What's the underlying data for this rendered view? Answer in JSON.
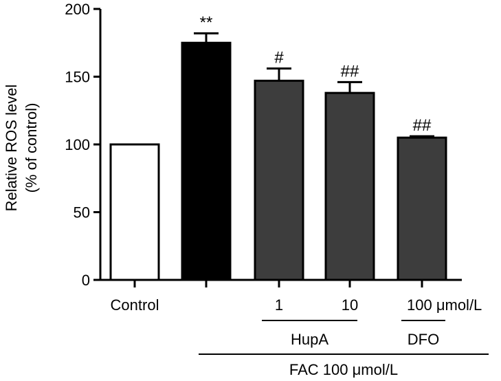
{
  "chart_data": {
    "type": "bar",
    "ylabel_lines": [
      "Relative ROS level",
      "(% of control)"
    ],
    "ylim": [
      0,
      200
    ],
    "yticks": [
      0,
      50,
      100,
      150,
      200
    ],
    "bars": [
      {
        "label": "Control",
        "value": 100,
        "error": 0,
        "fill": "#ffffff",
        "sig": ""
      },
      {
        "label": "",
        "value": 175,
        "error": 7,
        "fill": "#000000",
        "sig": "**"
      },
      {
        "label": "1",
        "value": 147,
        "error": 9,
        "fill": "#3d3d3d",
        "sig": "#"
      },
      {
        "label": "10",
        "value": 138,
        "error": 8,
        "fill": "#3d3d3d",
        "sig": "##"
      },
      {
        "label": "100 μmol/L",
        "value": 105,
        "error": 1,
        "fill": "#3d3d3d",
        "sig": "##"
      }
    ],
    "groups": [
      {
        "label": "HupA",
        "from": 2,
        "to": 3
      },
      {
        "label": "DFO",
        "from": 4,
        "to": 4
      },
      {
        "label": "FAC 100 μmol/L",
        "from": 1,
        "to": 4
      }
    ],
    "grid": false,
    "legend": "none"
  }
}
